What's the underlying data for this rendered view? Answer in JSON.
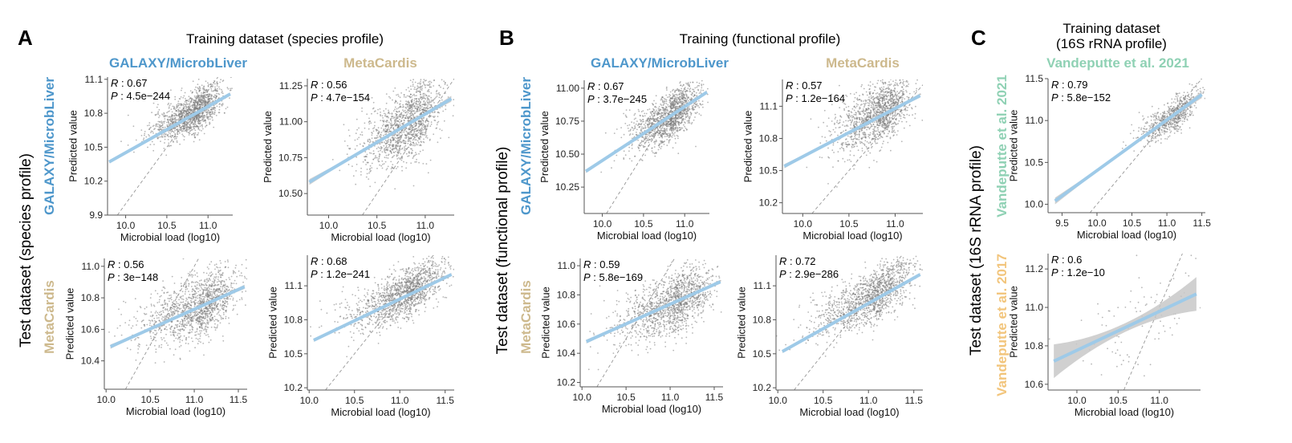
{
  "colors": {
    "galaxy": "#4e97cb",
    "metacardis": "#cdb98d",
    "vandeputte2021": "#8fd1b4",
    "vandeputte2017": "#f2c57c",
    "points": "#7a7a7a",
    "fit_line": "#9ecae8",
    "ci_band": "#c8c8c8",
    "identity_line": "#8c8c8c",
    "axis": "#555555"
  },
  "panels": [
    {
      "letter": "A",
      "title": "Training dataset (species profile)",
      "row_group_title": "Test dataset (species profile)",
      "columns": [
        {
          "label": "GALAXY/MicrobLiver",
          "color_key": "galaxy"
        },
        {
          "label": "MetaCardis",
          "color_key": "metacardis"
        }
      ],
      "rows": [
        {
          "label": "GALAXY/MicrobLiver",
          "color_key": "galaxy"
        },
        {
          "label": "MetaCardis",
          "color_key": "metacardis"
        }
      ]
    },
    {
      "letter": "B",
      "title": "Training (functional profile)",
      "row_group_title": "Test dataset (functional profile)",
      "columns": [
        {
          "label": "GALAXY/MicrobLiver",
          "color_key": "galaxy"
        },
        {
          "label": "MetaCardis",
          "color_key": "metacardis"
        }
      ],
      "rows": [
        {
          "label": "GALAXY/MicrobLiver",
          "color_key": "galaxy"
        },
        {
          "label": "MetaCardis",
          "color_key": "metacardis"
        }
      ]
    },
    {
      "letter": "C",
      "title_lines": [
        "Training dataset",
        "(16S rRNA profile)"
      ],
      "row_group_title": "Test dataset (16S rRNA profile)",
      "columns": [
        {
          "label": "Vandeputte et al. 2021",
          "color_key": "vandeputte2021"
        }
      ],
      "rows": [
        {
          "label": "Vandeputte et al. 2021",
          "color_key": "vandeputte2021"
        },
        {
          "label": "Vandeputte et al. 2017",
          "color_key": "vandeputte2017"
        }
      ]
    }
  ],
  "chart_data": [
    {
      "id": "A-r1c1",
      "type": "scatter",
      "panel": "A",
      "train": "GALAXY/MicrobLiver",
      "test": "GALAXY/MicrobLiver",
      "xlabel": "Microbial load (log10)",
      "ylabel": "Predicted value",
      "xlim": [
        9.78,
        11.3
      ],
      "ylim": [
        9.9,
        11.12
      ],
      "xticks": [
        10.0,
        10.5,
        11.0
      ],
      "xtick_labels": [
        "10.0",
        "10.5",
        "11.0"
      ],
      "yticks": [
        9.9,
        10.2,
        10.5,
        10.8,
        11.1
      ],
      "ytick_labels": [
        "9.9",
        "10.2",
        "10.5",
        "10.8",
        "11.1"
      ],
      "R": "0.67",
      "P": "4.5e−244",
      "fit": {
        "x": [
          9.8,
          11.27
        ],
        "y": [
          10.37,
          10.97
        ]
      },
      "ci_halfwidth": 0.01,
      "cloud": {
        "n": 1400,
        "cx": 10.82,
        "cy": 10.8,
        "sx": 0.2,
        "sy": 0.12,
        "r": 0.67
      }
    },
    {
      "id": "A-r1c2",
      "type": "scatter",
      "panel": "A",
      "train": "MetaCardis",
      "test": "GALAXY/MicrobLiver",
      "xlabel": "Microbial load (log10)",
      "ylabel": "Predicted value",
      "xlim": [
        9.78,
        11.3
      ],
      "ylim": [
        10.35,
        11.3
      ],
      "xticks": [
        10.0,
        10.5,
        11.0
      ],
      "xtick_labels": [
        "10.0",
        "10.5",
        "11.0"
      ],
      "yticks": [
        10.5,
        10.75,
        11.0,
        11.25
      ],
      "ytick_labels": [
        "10.50",
        "10.75",
        "11.00",
        "11.25"
      ],
      "R": "0.56",
      "P": "4.7e−154",
      "fit": {
        "x": [
          9.8,
          11.27
        ],
        "y": [
          10.58,
          11.16
        ]
      },
      "ci_halfwidth": 0.015,
      "cloud": {
        "n": 1400,
        "cx": 10.82,
        "cy": 10.98,
        "sx": 0.2,
        "sy": 0.15,
        "r": 0.56
      }
    },
    {
      "id": "A-r2c1",
      "type": "scatter",
      "panel": "A",
      "train": "GALAXY/MicrobLiver",
      "test": "MetaCardis",
      "xlabel": "Microbial load (log10)",
      "ylabel": "Predicted value",
      "xlim": [
        9.98,
        11.6
      ],
      "ylim": [
        10.22,
        11.05
      ],
      "xticks": [
        10.0,
        10.5,
        11.0,
        11.5
      ],
      "xtick_labels": [
        "10.0",
        "10.5",
        "11.0",
        "11.5"
      ],
      "yticks": [
        10.4,
        10.6,
        10.8,
        11.0
      ],
      "ytick_labels": [
        "10.4",
        "10.6",
        "10.8",
        "11.0"
      ],
      "R": "0.56",
      "P": "3e−148",
      "fit": {
        "x": [
          10.05,
          11.57
        ],
        "y": [
          10.49,
          10.87
        ]
      },
      "ci_halfwidth": 0.01,
      "cloud": {
        "n": 1400,
        "cx": 11.05,
        "cy": 10.74,
        "sx": 0.26,
        "sy": 0.12,
        "r": 0.56
      }
    },
    {
      "id": "A-r2c2",
      "type": "scatter",
      "panel": "A",
      "train": "MetaCardis",
      "test": "MetaCardis",
      "xlabel": "Microbial load (log10)",
      "ylabel": "Predicted value",
      "xlim": [
        9.98,
        11.6
      ],
      "ylim": [
        10.18,
        11.37
      ],
      "xticks": [
        10.0,
        10.5,
        11.0,
        11.5
      ],
      "xtick_labels": [
        "10.0",
        "10.5",
        "11.0",
        "11.5"
      ],
      "yticks": [
        10.2,
        10.5,
        10.8,
        11.1
      ],
      "ytick_labels": [
        "10.2",
        "10.5",
        "10.8",
        "11.1"
      ],
      "R": "0.68",
      "P": "1.2e−241",
      "fit": {
        "x": [
          10.05,
          11.57
        ],
        "y": [
          10.62,
          11.2
        ]
      },
      "ci_halfwidth": 0.01,
      "cloud": {
        "n": 1400,
        "cx": 11.05,
        "cy": 11.02,
        "sx": 0.26,
        "sy": 0.15,
        "r": 0.68
      }
    },
    {
      "id": "B-r1c1",
      "type": "scatter",
      "panel": "B",
      "train": "GALAXY/MicrobLiver",
      "test": "GALAXY/MicrobLiver",
      "xlabel": "Microbial load (log10)",
      "ylabel": "Predicted value",
      "xlim": [
        9.78,
        11.3
      ],
      "ylim": [
        10.05,
        11.06
      ],
      "xticks": [
        10.0,
        10.5,
        11.0
      ],
      "xtick_labels": [
        "10.0",
        "10.5",
        "11.0"
      ],
      "yticks": [
        10.25,
        10.5,
        10.75,
        11.0
      ],
      "ytick_labels": [
        "10.25",
        "10.50",
        "10.75",
        "11.00"
      ],
      "R": "0.67",
      "P": "3.7e−245",
      "fit": {
        "x": [
          9.8,
          11.27
        ],
        "y": [
          10.37,
          10.97
        ]
      },
      "ci_halfwidth": 0.01,
      "cloud": {
        "n": 1400,
        "cx": 10.82,
        "cy": 10.78,
        "sx": 0.2,
        "sy": 0.12,
        "r": 0.67
      }
    },
    {
      "id": "B-r1c2",
      "type": "scatter",
      "panel": "B",
      "train": "MetaCardis",
      "test": "GALAXY/MicrobLiver",
      "xlabel": "Microbial load (log10)",
      "ylabel": "Predicted value",
      "xlim": [
        9.78,
        11.3
      ],
      "ylim": [
        10.1,
        11.35
      ],
      "xticks": [
        10.0,
        10.5,
        11.0
      ],
      "xtick_labels": [
        "10.0",
        "10.5",
        "11.0"
      ],
      "yticks": [
        10.2,
        10.5,
        10.8,
        11.1
      ],
      "ytick_labels": [
        "10.2",
        "10.5",
        "10.8",
        "11.1"
      ],
      "R": "0.57",
      "P": "1.2e−164",
      "fit": {
        "x": [
          9.8,
          11.27
        ],
        "y": [
          10.54,
          11.2
        ]
      },
      "ci_halfwidth": 0.015,
      "cloud": {
        "n": 1400,
        "cx": 10.82,
        "cy": 11.02,
        "sx": 0.2,
        "sy": 0.17,
        "r": 0.57
      }
    },
    {
      "id": "B-r2c1",
      "type": "scatter",
      "panel": "B",
      "train": "GALAXY/MicrobLiver",
      "test": "MetaCardis",
      "xlabel": "Microbial load (log10)",
      "ylabel": "Predicted value",
      "xlim": [
        9.98,
        11.6
      ],
      "ylim": [
        10.17,
        11.05
      ],
      "xticks": [
        10.0,
        10.5,
        11.0,
        11.5
      ],
      "xtick_labels": [
        "10.0",
        "10.5",
        "11.0",
        "11.5"
      ],
      "yticks": [
        10.2,
        10.4,
        10.6,
        10.8,
        11.0
      ],
      "ytick_labels": [
        "10.2",
        "10.4",
        "10.6",
        "10.8",
        "11.0"
      ],
      "R": "0.59",
      "P": "5.8e−169",
      "fit": {
        "x": [
          10.05,
          11.57
        ],
        "y": [
          10.48,
          10.89
        ]
      },
      "ci_halfwidth": 0.01,
      "cloud": {
        "n": 1400,
        "cx": 11.05,
        "cy": 10.74,
        "sx": 0.26,
        "sy": 0.13,
        "r": 0.59
      }
    },
    {
      "id": "B-r2c2",
      "type": "scatter",
      "panel": "B",
      "train": "MetaCardis",
      "test": "MetaCardis",
      "xlabel": "Microbial load (log10)",
      "ylabel": "Predicted value",
      "xlim": [
        9.98,
        11.6
      ],
      "ylim": [
        10.18,
        11.37
      ],
      "xticks": [
        10.0,
        10.5,
        11.0,
        11.5
      ],
      "xtick_labels": [
        "10.0",
        "10.5",
        "11.0",
        "11.5"
      ],
      "yticks": [
        10.2,
        10.5,
        10.8,
        11.1
      ],
      "ytick_labels": [
        "10.2",
        "10.5",
        "10.8",
        "11.1"
      ],
      "R": "0.72",
      "P": "2.9e−286",
      "fit": {
        "x": [
          10.05,
          11.57
        ],
        "y": [
          10.52,
          11.2
        ]
      },
      "ci_halfwidth": 0.01,
      "cloud": {
        "n": 1400,
        "cx": 11.05,
        "cy": 11.0,
        "sx": 0.26,
        "sy": 0.16,
        "r": 0.72
      }
    },
    {
      "id": "C-r1c1",
      "type": "scatter",
      "panel": "C",
      "train": "Vandeputte et al. 2021",
      "test": "Vandeputte et al. 2021",
      "xlabel": "Microbial load (log10)",
      "ylabel": "Predicted value",
      "xlim": [
        9.3,
        11.55
      ],
      "ylim": [
        9.9,
        11.5
      ],
      "xticks": [
        9.5,
        10.0,
        10.5,
        11.0,
        11.5
      ],
      "xtick_labels": [
        "9.5",
        "10.0",
        "10.5",
        "11.0",
        "11.5"
      ],
      "yticks": [
        10.0,
        10.5,
        11.0,
        11.5
      ],
      "ytick_labels": [
        "10.0",
        "10.5",
        "11.0",
        "11.5"
      ],
      "R": "0.79",
      "P": "5.8e−152",
      "fit": {
        "x": [
          9.4,
          11.5
        ],
        "y": [
          10.04,
          11.31
        ]
      },
      "ci_halfwidth": 0.03,
      "cloud": {
        "n": 700,
        "cx": 11.1,
        "cy": 11.05,
        "sx": 0.2,
        "sy": 0.15,
        "r": 0.79
      }
    },
    {
      "id": "C-r2c1",
      "type": "scatter",
      "panel": "C",
      "train": "Vandeputte et al. 2021",
      "test": "Vandeputte et al. 2017",
      "xlabel": "Microbial load (log10)",
      "ylabel": "Predicted value",
      "xlim": [
        9.65,
        11.5
      ],
      "ylim": [
        10.57,
        11.28
      ],
      "xticks": [
        10.0,
        10.5,
        11.0
      ],
      "xtick_labels": [
        "10.0",
        "10.5",
        "11.0"
      ],
      "yticks": [
        10.6,
        10.8,
        11.0,
        11.2
      ],
      "ytick_labels": [
        "10.6",
        "10.8",
        "11.0",
        "11.2"
      ],
      "R": "0.6",
      "P": "1.2e−10",
      "fit": {
        "x": [
          9.72,
          11.45
        ],
        "y": [
          10.72,
          11.07
        ]
      },
      "ci_halfwidth": 0.065,
      "cloud": {
        "n": 95,
        "cx": 10.9,
        "cy": 10.95,
        "sx": 0.35,
        "sy": 0.14,
        "r": 0.6
      }
    }
  ]
}
